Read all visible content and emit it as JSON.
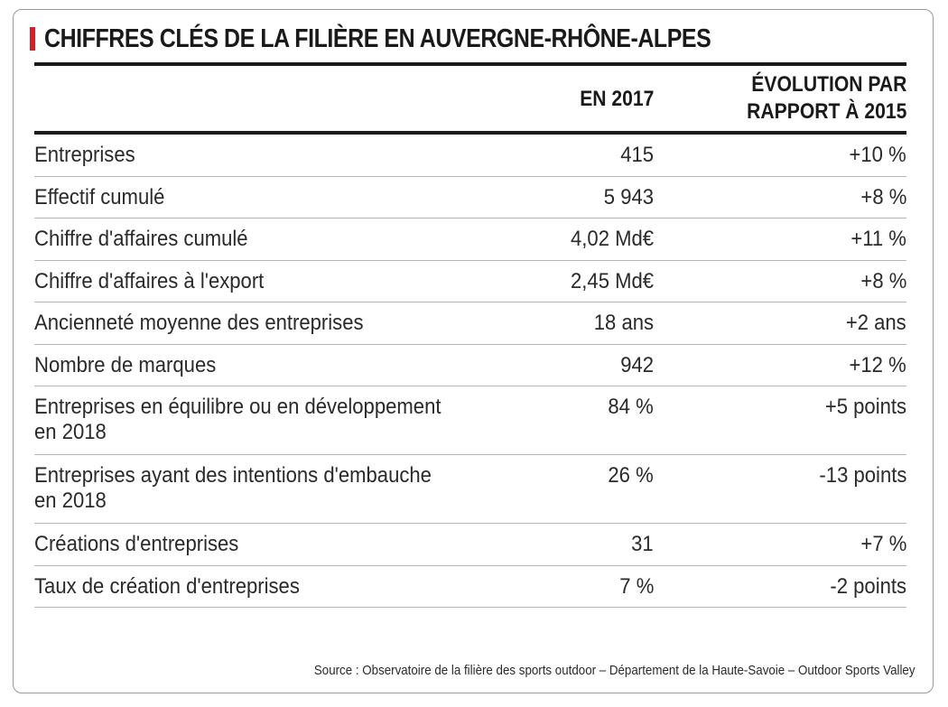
{
  "title": "CHIFFRES CLÉS DE LA FILIÈRE EN AUVERGNE-RHÔNE-ALPES",
  "accent_color": "#d0202a",
  "header": {
    "col2": "EN 2017",
    "col3_line1": "ÉVOLUTION PAR",
    "col3_line2": "RAPPORT À 2015"
  },
  "rows": [
    {
      "label": "Entreprises",
      "value": "415",
      "evolution": "+10 %"
    },
    {
      "label": "Effectif cumulé",
      "value": "5 943",
      "evolution": "+8 %"
    },
    {
      "label": "Chiffre d'affaires cumulé",
      "value": "4,02 Md€",
      "evolution": "+11 %"
    },
    {
      "label": "Chiffre d'affaires à l'export",
      "value": "2,45 Md€",
      "evolution": "+8 %"
    },
    {
      "label": "Ancienneté moyenne des entreprises",
      "value": "18 ans",
      "evolution": "+2 ans"
    },
    {
      "label": "Nombre de marques",
      "value": "942",
      "evolution": "+12 %"
    },
    {
      "label": "Entreprises en équilibre ou en développement\nen 2018",
      "value": "84 %",
      "evolution": "+5 points"
    },
    {
      "label": "Entreprises ayant des intentions d'embauche\nen 2018",
      "value": "26 %",
      "evolution": "-13 points"
    },
    {
      "label": "Créations d'entreprises",
      "value": "31",
      "evolution": "+7 %"
    },
    {
      "label": "Taux de création d'entreprises",
      "value": "7 %",
      "evolution": "-2 points"
    }
  ],
  "source": "Source : Observatoire de la filière des sports outdoor – Département de la Haute-Savoie – Outdoor Sports Valley"
}
